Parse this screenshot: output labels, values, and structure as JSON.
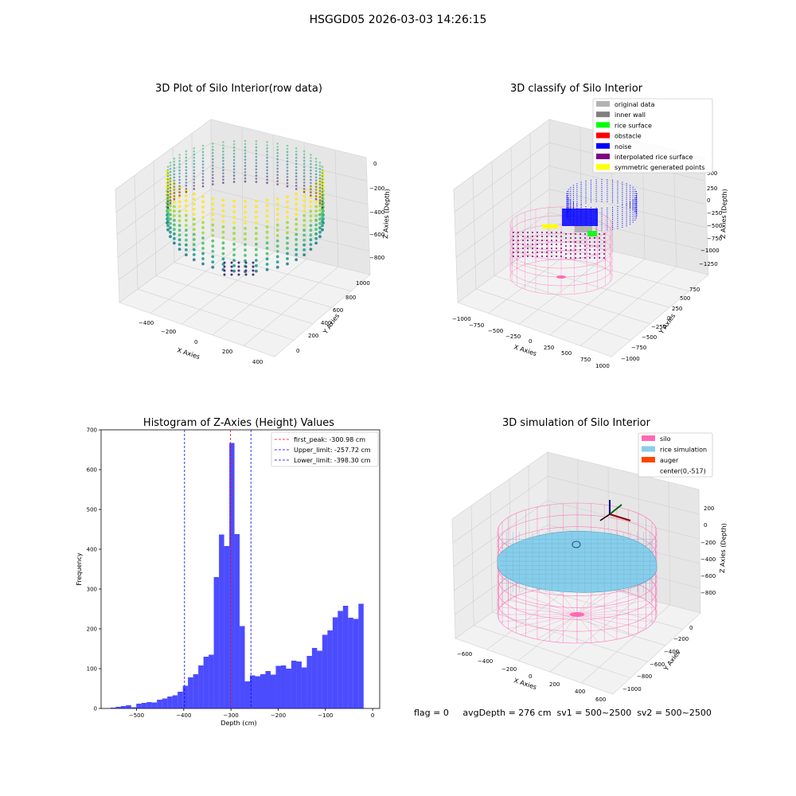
{
  "figure": {
    "suptitle": "HSGGD05 2026-03-03 14:26:15",
    "footer": "flag = 0     avgDepth = 276 cm  sv1 = 500~2500  sv2 = 500~2500"
  },
  "chart_data": [
    {
      "type": "scatter",
      "title": "3D Plot of Silo Interior(row data)",
      "xlabel": "X Axies",
      "ylabel": "Y Axies",
      "zlabel": "Z Axies (Depth)",
      "xticks": [
        "−400",
        "−200",
        "0",
        "200",
        "400"
      ],
      "yticks": [
        "0",
        "200",
        "400",
        "600",
        "800",
        "1000"
      ],
      "zticks": [
        "0",
        "−200",
        "−400",
        "−600",
        "−800"
      ],
      "colormap": "viridis"
    },
    {
      "type": "scatter",
      "title": "3D classify of Silo Interior",
      "xlabel": "X Axies",
      "ylabel": "Y Axies",
      "zlabel": "Z Axies (Depth)",
      "xticks": [
        "−1000",
        "−750",
        "−500",
        "−250",
        "0",
        "250",
        "500",
        "750",
        "1000"
      ],
      "yticks": [
        "−1000",
        "−750",
        "−500",
        "−250",
        "0",
        "250",
        "500",
        "750"
      ],
      "zticks": [
        "500",
        "250",
        "0",
        "−250",
        "−500",
        "−750",
        "−1000",
        "−1250"
      ],
      "legend": [
        {
          "name": "original data",
          "color": "#b3b3b3"
        },
        {
          "name": "inner wall",
          "color": "#808080"
        },
        {
          "name": "rice surface",
          "color": "#00ff00"
        },
        {
          "name": "obstacle",
          "color": "#ff0000"
        },
        {
          "name": "noise",
          "color": "#0000ff"
        },
        {
          "name": "interpolated rice surface",
          "color": "#800080"
        },
        {
          "name": "symmetric generated points",
          "color": "#ffff00"
        }
      ]
    },
    {
      "type": "bar",
      "title": "Histogram of Z-Axies (Height) Values",
      "xlabel": "Depth (cm)",
      "ylabel": "Frequency",
      "xlim": [
        -575,
        15
      ],
      "ylim": [
        0,
        700
      ],
      "xticks": [
        -500,
        -400,
        -300,
        -200,
        -100,
        0
      ],
      "xtick_labels": [
        "−500",
        "−400",
        "−300",
        "−200",
        "−100",
        "0"
      ],
      "yticks": [
        0,
        100,
        200,
        300,
        400,
        500,
        600,
        700
      ],
      "bar_color": "#0000ff",
      "bin_start": -555.1,
      "bin_width": 10.94,
      "values": [
        2,
        4,
        6,
        8,
        3,
        12,
        14,
        16,
        15,
        22,
        25,
        30,
        33,
        42,
        57,
        78,
        86,
        108,
        130,
        135,
        330,
        437,
        408,
        667,
        438,
        207,
        68,
        83,
        81,
        86,
        94,
        85,
        107,
        108,
        100,
        120,
        118,
        103,
        132,
        152,
        145,
        185,
        196,
        229,
        245,
        258,
        228,
        225,
        263
      ],
      "lines": [
        {
          "name": "first_peak: -300.98 cm",
          "x": -300.98,
          "color": "#ff0000"
        },
        {
          "name": "Upper_limit: -257.72 cm",
          "x": -257.72,
          "color": "#0000ff"
        },
        {
          "name": "Lower_limit: -398.30 cm",
          "x": -398.3,
          "color": "#0000ff"
        }
      ]
    },
    {
      "type": "scatter",
      "title": "3D simulation of Silo Interior",
      "xlabel": "X Axies",
      "ylabel": "Y Axies",
      "zlabel": "Z Axies (Depth)",
      "xticks": [
        "−600",
        "−400",
        "−200",
        "0",
        "200",
        "400",
        "600"
      ],
      "yticks": [
        "0",
        "−200",
        "−400",
        "−600",
        "−800",
        "−1000"
      ],
      "zticks": [
        "200",
        "0",
        "−200",
        "−400",
        "−600",
        "−800"
      ],
      "legend": [
        {
          "name": "silo",
          "color": "#ff69b4"
        },
        {
          "name": "rice simulation",
          "color": "#87ceeb"
        },
        {
          "name": "auger",
          "color": "#ff4500"
        },
        {
          "name": "center(0,-517)",
          "color": "none"
        }
      ]
    }
  ]
}
